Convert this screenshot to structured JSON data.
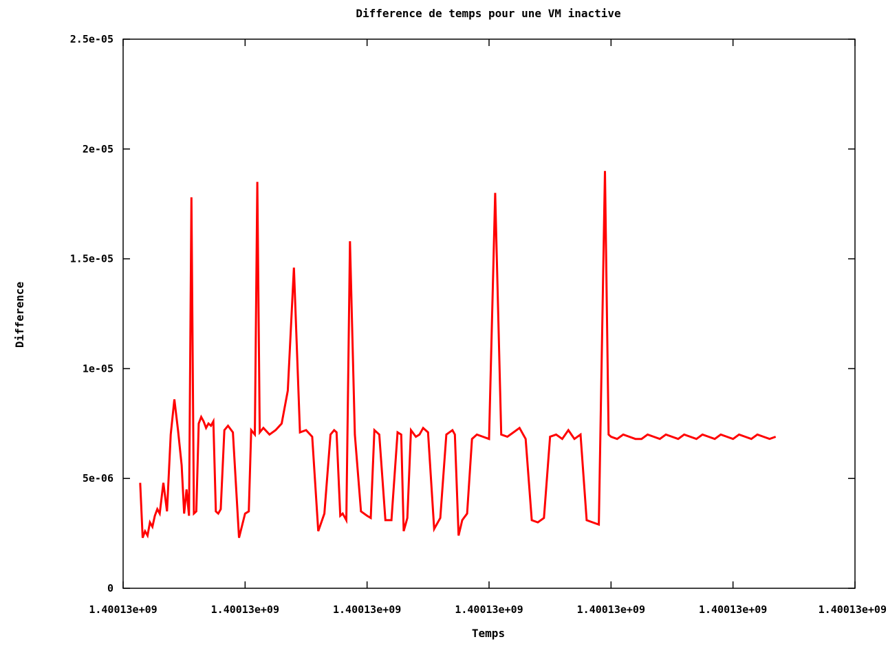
{
  "chart_data": {
    "type": "line",
    "title": "Difference de temps pour une VM inactive",
    "xlabel": "Temps",
    "ylabel": "Difference",
    "grid": false,
    "legend": "none",
    "colors": {
      "series": "#ff0000",
      "axes": "#000000",
      "background": "#ffffff"
    },
    "xlim": [
      0,
      6
    ],
    "ylim": [
      0,
      2.5e-05
    ],
    "x_ticks": [
      {
        "value": 0,
        "label": "1.40013e+09"
      },
      {
        "value": 1,
        "label": "1.40013e+09"
      },
      {
        "value": 2,
        "label": "1.40013e+09"
      },
      {
        "value": 3,
        "label": "1.40013e+09"
      },
      {
        "value": 4,
        "label": "1.40013e+09"
      },
      {
        "value": 5,
        "label": "1.40013e+09"
      },
      {
        "value": 6,
        "label": "1.40013e+09"
      }
    ],
    "y_ticks": [
      {
        "value": 0,
        "label": "0"
      },
      {
        "value": 5e-06,
        "label": "5e-06"
      },
      {
        "value": 1e-05,
        "label": "1e-05"
      },
      {
        "value": 1.5e-05,
        "label": "1.5e-05"
      },
      {
        "value": 2e-05,
        "label": "2e-05"
      },
      {
        "value": 2.5e-05,
        "label": "2.5e-05"
      }
    ],
    "series": [
      {
        "x": [
          0.14,
          0.16,
          0.18,
          0.2,
          0.22,
          0.24,
          0.26,
          0.28,
          0.3,
          0.33,
          0.36,
          0.39,
          0.42,
          0.45,
          0.48,
          0.5,
          0.52,
          0.54,
          0.56,
          0.58,
          0.6,
          0.62,
          0.64,
          0.66,
          0.68,
          0.7,
          0.72,
          0.74,
          0.76,
          0.78,
          0.8,
          0.83,
          0.86,
          0.9,
          0.95,
          1.0,
          1.03,
          1.05,
          1.08,
          1.1,
          1.12,
          1.15,
          1.2,
          1.25,
          1.3,
          1.35,
          1.4,
          1.45,
          1.5,
          1.55,
          1.6,
          1.65,
          1.7,
          1.73,
          1.75,
          1.78,
          1.8,
          1.83,
          1.86,
          1.9,
          1.95,
          2.0,
          2.03,
          2.06,
          2.1,
          2.15,
          2.2,
          2.25,
          2.28,
          2.3,
          2.33,
          2.36,
          2.4,
          2.43,
          2.46,
          2.5,
          2.55,
          2.6,
          2.65,
          2.7,
          2.72,
          2.75,
          2.78,
          2.82,
          2.86,
          2.9,
          2.95,
          3.0,
          3.05,
          3.1,
          3.15,
          3.2,
          3.25,
          3.3,
          3.35,
          3.4,
          3.45,
          3.5,
          3.55,
          3.6,
          3.65,
          3.7,
          3.75,
          3.8,
          3.85,
          3.9,
          3.95,
          3.98,
          4.0,
          4.05,
          4.1,
          4.15,
          4.2,
          4.25,
          4.3,
          4.35,
          4.4,
          4.45,
          4.5,
          4.55,
          4.6,
          4.65,
          4.7,
          4.75,
          4.8,
          4.85,
          4.9,
          4.95,
          5.0,
          5.05,
          5.1,
          5.15,
          5.2,
          5.25,
          5.3,
          5.35
        ],
        "y": [
          4.8e-06,
          2.3e-06,
          2.6e-06,
          2.4e-06,
          3e-06,
          2.8e-06,
          3.3e-06,
          3.6e-06,
          3.4e-06,
          4.8e-06,
          3.5e-06,
          7e-06,
          8.6e-06,
          7.2e-06,
          5.6e-06,
          3.4e-06,
          4.5e-06,
          3.3e-06,
          1.78e-05,
          3.4e-06,
          3.5e-06,
          7.5e-06,
          7.8e-06,
          7.6e-06,
          7.3e-06,
          7.5e-06,
          7.4e-06,
          7.6e-06,
          3.5e-06,
          3.4e-06,
          3.6e-06,
          7.2e-06,
          7.4e-06,
          7.1e-06,
          2.3e-06,
          3.4e-06,
          3.5e-06,
          7.2e-06,
          7e-06,
          1.85e-05,
          7.1e-06,
          7.3e-06,
          7e-06,
          7.2e-06,
          7.5e-06,
          9e-06,
          1.46e-05,
          7.1e-06,
          7.2e-06,
          6.9e-06,
          2.6e-06,
          3.4e-06,
          7e-06,
          7.2e-06,
          7.1e-06,
          3.3e-06,
          3.4e-06,
          3.1e-06,
          1.58e-05,
          7e-06,
          3.5e-06,
          3.3e-06,
          3.2e-06,
          7.2e-06,
          7e-06,
          3.1e-06,
          3.1e-06,
          7.1e-06,
          7e-06,
          2.6e-06,
          3.2e-06,
          7.2e-06,
          6.9e-06,
          7e-06,
          7.3e-06,
          7.1e-06,
          2.7e-06,
          3.2e-06,
          7e-06,
          7.2e-06,
          7e-06,
          2.4e-06,
          3.1e-06,
          3.4e-06,
          6.8e-06,
          7e-06,
          6.9e-06,
          6.8e-06,
          1.8e-05,
          7e-06,
          6.9e-06,
          7.1e-06,
          7.3e-06,
          6.8e-06,
          3.1e-06,
          3e-06,
          3.2e-06,
          6.9e-06,
          7e-06,
          6.8e-06,
          7.2e-06,
          6.8e-06,
          7e-06,
          3.1e-06,
          3e-06,
          2.9e-06,
          1.9e-05,
          7e-06,
          6.9e-06,
          6.8e-06,
          7e-06,
          6.9e-06,
          6.8e-06,
          6.8e-06,
          7e-06,
          6.9e-06,
          6.8e-06,
          7e-06,
          6.9e-06,
          6.8e-06,
          7e-06,
          6.9e-06,
          6.8e-06,
          7e-06,
          6.9e-06,
          6.8e-06,
          7e-06,
          6.9e-06,
          6.8e-06,
          7e-06,
          6.9e-06,
          6.8e-06,
          7e-06,
          6.9e-06,
          6.8e-06,
          6.9e-06
        ]
      }
    ]
  }
}
